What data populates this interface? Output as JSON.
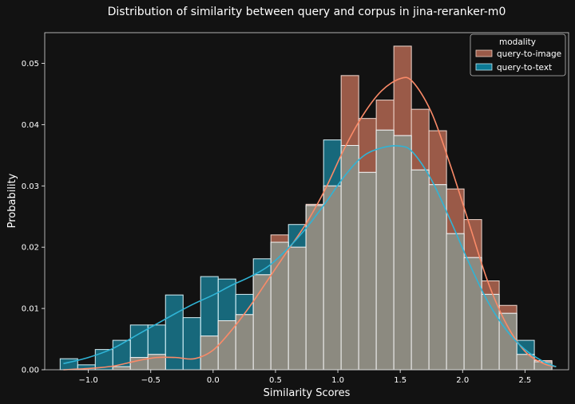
{
  "chart_data": {
    "type": "bar",
    "title": "Distribution of similarity between query and corpus in jina-reranker-m0",
    "xlabel": "Similarity Scores",
    "ylabel": "Probability",
    "xlim": [
      -1.35,
      2.85
    ],
    "ylim": [
      0,
      0.055
    ],
    "x_ticks": [
      -1.0,
      -0.5,
      0.0,
      0.5,
      1.0,
      1.5,
      2.0,
      2.5
    ],
    "x_tick_labels": [
      "−1.0",
      "−0.5",
      "0.0",
      "0.5",
      "1.0",
      "1.5",
      "2.0",
      "2.5"
    ],
    "y_ticks": [
      0,
      0.01,
      0.02,
      0.03,
      0.04,
      0.05
    ],
    "y_tick_labels": [
      "0.00",
      "0.01",
      "0.02",
      "0.03",
      "0.04",
      "0.05"
    ],
    "grid": false,
    "legend": {
      "title": "modality",
      "placement": "top-right"
    },
    "bins": {
      "edges": [
        -1.2264,
        -1.0856,
        -0.9448,
        -0.804,
        -0.6632,
        -0.5224,
        -0.3816,
        -0.2408,
        -0.1,
        0.0408,
        0.1816,
        0.3224,
        0.4632,
        0.604,
        0.7448,
        0.8856,
        1.0264,
        1.1672,
        1.308,
        1.4488,
        1.5896,
        1.7304,
        1.8712,
        2.012,
        2.1528,
        2.2936,
        2.4344,
        2.5752,
        2.716
      ]
    },
    "series": [
      {
        "name": "query-to-image",
        "color": "#fa8a68",
        "values": [
          0.0,
          0.0,
          0.0,
          0.0005,
          0.002,
          0.0025,
          0.0,
          0.0,
          0.0055,
          0.008,
          0.009,
          0.0155,
          0.022,
          0.02,
          0.027,
          0.03,
          0.048,
          0.041,
          0.044,
          0.0528,
          0.0425,
          0.039,
          0.0295,
          0.0245,
          0.0145,
          0.0105,
          0.0025,
          0.0015
        ],
        "kde": [
          [
            -1.2,
            0.0
          ],
          [
            -1.0,
            0.0002
          ],
          [
            -0.8,
            0.0006
          ],
          [
            -0.6,
            0.0015
          ],
          [
            -0.45,
            0.002
          ],
          [
            -0.3,
            0.002
          ],
          [
            -0.15,
            0.0018
          ],
          [
            0.0,
            0.0032
          ],
          [
            0.15,
            0.0065
          ],
          [
            0.3,
            0.0105
          ],
          [
            0.45,
            0.015
          ],
          [
            0.6,
            0.0195
          ],
          [
            0.75,
            0.024
          ],
          [
            0.9,
            0.0295
          ],
          [
            1.05,
            0.036
          ],
          [
            1.2,
            0.0415
          ],
          [
            1.35,
            0.0455
          ],
          [
            1.5,
            0.0475
          ],
          [
            1.6,
            0.047
          ],
          [
            1.75,
            0.042
          ],
          [
            1.9,
            0.0335
          ],
          [
            2.05,
            0.024
          ],
          [
            2.2,
            0.0145
          ],
          [
            2.35,
            0.0075
          ],
          [
            2.5,
            0.003
          ],
          [
            2.65,
            0.001
          ],
          [
            2.75,
            0.0005
          ]
        ]
      },
      {
        "name": "query-to-text",
        "color": "#1ba1c2",
        "values": [
          0.0018,
          0.0008,
          0.0033,
          0.0048,
          0.0073,
          0.0073,
          0.0122,
          0.0085,
          0.0152,
          0.0148,
          0.0123,
          0.0181,
          0.0208,
          0.0237,
          0.0268,
          0.0375,
          0.0366,
          0.0322,
          0.0391,
          0.0382,
          0.0326,
          0.0302,
          0.0222,
          0.0183,
          0.0123,
          0.0092,
          0.0048,
          0.0013
        ],
        "kde": [
          [
            -1.2,
            0.001
          ],
          [
            -1.0,
            0.002
          ],
          [
            -0.8,
            0.0035
          ],
          [
            -0.6,
            0.0058
          ],
          [
            -0.45,
            0.0075
          ],
          [
            -0.3,
            0.0092
          ],
          [
            -0.15,
            0.0108
          ],
          [
            0.0,
            0.0122
          ],
          [
            0.15,
            0.0138
          ],
          [
            0.3,
            0.0152
          ],
          [
            0.45,
            0.017
          ],
          [
            0.6,
            0.0198
          ],
          [
            0.75,
            0.0232
          ],
          [
            0.9,
            0.0272
          ],
          [
            1.05,
            0.0315
          ],
          [
            1.2,
            0.0348
          ],
          [
            1.35,
            0.0362
          ],
          [
            1.5,
            0.0365
          ],
          [
            1.6,
            0.0355
          ],
          [
            1.75,
            0.031
          ],
          [
            1.9,
            0.0245
          ],
          [
            2.05,
            0.0175
          ],
          [
            2.2,
            0.0112
          ],
          [
            2.35,
            0.0065
          ],
          [
            2.5,
            0.0033
          ],
          [
            2.65,
            0.0013
          ],
          [
            2.75,
            0.0005
          ]
        ]
      }
    ]
  }
}
